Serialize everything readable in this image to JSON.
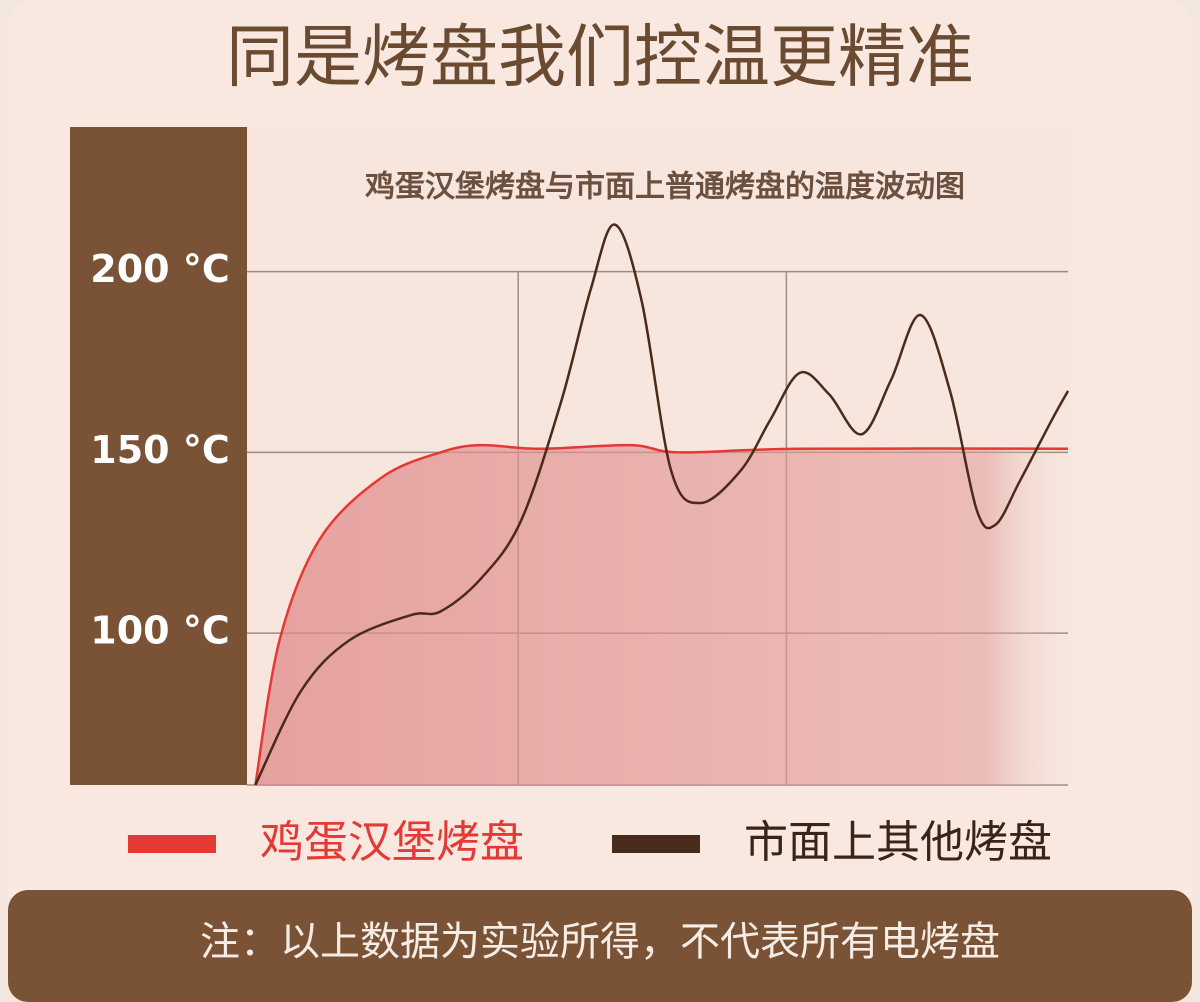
{
  "chart_data": {
    "type": "line",
    "title": "同是烤盘我们控温更精准",
    "subtitle": "鸡蛋汉堡烤盘与市面上普通烤盘的温度波动图",
    "ylim": [
      58,
      240
    ],
    "yticks": [
      {
        "value": 100,
        "label": "100 °C"
      },
      {
        "value": 150,
        "label": "150 °C"
      },
      {
        "value": 200,
        "label": "200 °C"
      }
    ],
    "xlim": [
      0,
      3.05
    ],
    "xticks": [
      1,
      2
    ],
    "grid": true,
    "series": [
      {
        "name": "鸡蛋汉堡烤盘",
        "color": "#e53935",
        "x": [
          0.02,
          0.11,
          0.26,
          0.49,
          0.71,
          0.86,
          1.08,
          1.42,
          1.6,
          2.05,
          3.05
        ],
        "values": [
          58,
          98,
          126,
          143,
          150,
          152,
          151,
          152,
          150,
          151,
          151
        ]
      },
      {
        "name": "市面上其他烤盘",
        "color": "#4a2a1a",
        "x": [
          0.02,
          0.19,
          0.37,
          0.6,
          0.71,
          0.86,
          1.01,
          1.16,
          1.27,
          1.36,
          1.46,
          1.57,
          1.68,
          1.83,
          1.94,
          2.05,
          2.16,
          2.28,
          2.39,
          2.5,
          2.61,
          2.71,
          2.78,
          2.87,
          2.99,
          3.05
        ],
        "values": [
          58,
          84,
          98,
          105,
          106,
          115,
          131,
          164,
          195,
          213,
          192,
          145,
          136,
          145,
          159,
          172,
          166,
          155,
          170,
          188,
          167,
          134,
          130,
          142,
          159,
          167
        ]
      }
    ],
    "note": "注：以上数据为实验所得，不代表所有电烤盘"
  }
}
